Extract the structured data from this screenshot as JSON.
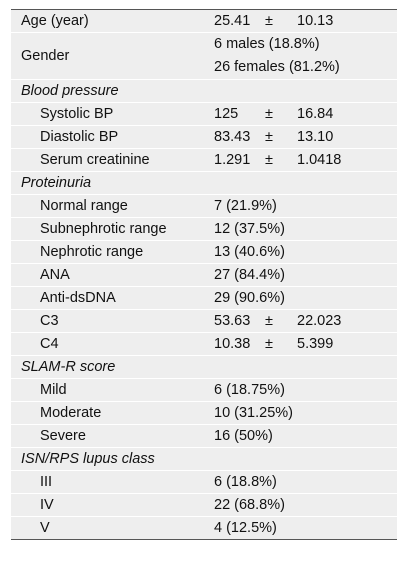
{
  "rows": [
    {
      "label": "Age (year)",
      "mean": "25.41",
      "pm": "±",
      "sd": "10.13"
    },
    {
      "label": "Gender",
      "lines": [
        "6 males (18.8%)",
        "26 females (81.2%)"
      ]
    },
    {
      "label": "Blood pressure",
      "section": true
    },
    {
      "label": "Systolic BP",
      "mean": "125",
      "pm": "±",
      "sd": "16.84"
    },
    {
      "label": "Diastolic BP",
      "mean": "83.43",
      "pm": "±",
      "sd": "13.10"
    },
    {
      "label": "Serum creatinine",
      "mean": "1.291",
      "pm": "±",
      "sd": "1.0418"
    },
    {
      "label": "Proteinuria",
      "section": true
    },
    {
      "label": "Normal range",
      "value": "7 (21.9%)"
    },
    {
      "label": "Subnephrotic range",
      "value": "12 (37.5%)"
    },
    {
      "label": "Nephrotic range",
      "value": "13 (40.6%)"
    },
    {
      "label": "ANA",
      "value": "27 (84.4%)"
    },
    {
      "label": "Anti-dsDNA",
      "value": "29 (90.6%)"
    },
    {
      "label": "C3",
      "mean": "53.63",
      "pm": "±",
      "sd": "22.023"
    },
    {
      "label": "C4",
      "mean": "10.38",
      "pm": "±",
      "sd": "5.399"
    },
    {
      "label": "SLAM-R score",
      "section": true
    },
    {
      "label": "Mild",
      "value": "6 (18.75%)"
    },
    {
      "label": "Moderate",
      "value": "10 (31.25%)"
    },
    {
      "label": "Severe",
      "value": "16 (50%)"
    },
    {
      "label": "ISN/RPS lupus class",
      "section": true
    },
    {
      "label": "III",
      "value": "6 (18.8%)"
    },
    {
      "label": "IV",
      "value": "22 (68.8%)"
    },
    {
      "label": "V",
      "value": "4 (12.5%)"
    }
  ]
}
